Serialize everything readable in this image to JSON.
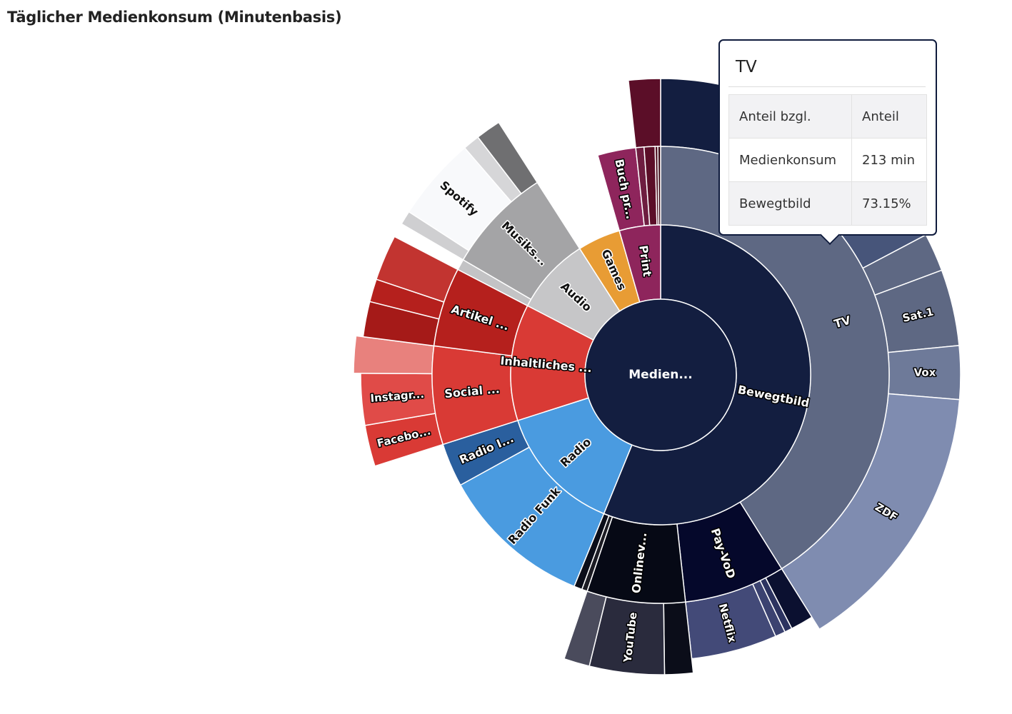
{
  "title": "Täglicher Medienkonsum (Minutenbasis)",
  "tooltip": {
    "title": "TV",
    "rows": [
      [
        "Anteil bzgl.",
        "Anteil"
      ],
      [
        "Medienkonsum",
        "213 min"
      ],
      [
        "Bewegtbild",
        "73.15%"
      ]
    ]
  },
  "chart_data": {
    "type": "sunburst",
    "root": "Medien...",
    "unit": "min",
    "rings": [
      [
        {
          "id": "bw",
          "label": "Bewegtbild",
          "value": 291,
          "color": "#131e40",
          "text_color": "#ffffff",
          "text_stroke": true
        },
        {
          "id": "radio",
          "label": "Radio",
          "value": 72,
          "color": "#4a9be0",
          "text_color": "#111111",
          "text_stroke": false
        },
        {
          "id": "ih",
          "label": "Inhaltliches ...",
          "value": 65,
          "color": "#d93a35",
          "text_color": "#ffffff",
          "text_stroke": true
        },
        {
          "id": "audio",
          "label": "Audio",
          "value": 43,
          "color": "#c6c6c8",
          "text_color": "#111111",
          "text_stroke": false
        },
        {
          "id": "games",
          "label": "Games",
          "value": 24,
          "color": "#e89c34",
          "text_color": "#111111",
          "text_stroke": false
        },
        {
          "id": "print",
          "label": "Print",
          "value": 23,
          "color": "#8e255c",
          "text_color": "#ffffff",
          "text_stroke": true
        }
      ],
      [
        {
          "parent": "bw",
          "label": "TV",
          "value": 213,
          "color": "#5e6883",
          "text_color": "#ffffff",
          "text_stroke": true
        },
        {
          "parent": "bw",
          "label": "Pay-VoD",
          "value": 37,
          "color": "#05082b",
          "text_color": "#ffffff",
          "text_stroke": true
        },
        {
          "parent": "bw",
          "label": "Onlinev...",
          "value": 36,
          "color": "#060915",
          "text_color": "#ffffff",
          "text_stroke": true
        },
        {
          "parent": "bw",
          "label": "",
          "value": 2,
          "color": "#1c1c24",
          "text_color": "#ffffff",
          "text_stroke": false
        },
        {
          "parent": "bw",
          "label": "",
          "value": 3,
          "color": "#0b0d19",
          "text_color": "#ffffff",
          "text_stroke": false
        },
        {
          "parent": "radio",
          "label": "Radio Funk",
          "value": 56,
          "color": "#4a9be0",
          "text_color": "#111111",
          "text_stroke": false
        },
        {
          "parent": "radio",
          "label": "Radio I...",
          "value": 16,
          "color": "#2a5f9e",
          "text_color": "#ffffff",
          "text_stroke": true
        },
        {
          "parent": "ih",
          "label": "Social ...",
          "value": 36,
          "color": "#d93a35",
          "text_color": "#ffffff",
          "text_stroke": true
        },
        {
          "parent": "ih",
          "label": "Artikel ...",
          "value": 29,
          "color": "#b5201d",
          "text_color": "#ffffff",
          "text_stroke": true
        },
        {
          "parent": "audio",
          "label": "",
          "value": 4,
          "color": "#c3c3c5",
          "text_color": "#111111",
          "text_stroke": false
        },
        {
          "parent": "audio",
          "label": "Musiks...",
          "value": 39,
          "color": "#a4a4a6",
          "text_color": "#111111",
          "text_stroke": false
        },
        {
          "parent": "print",
          "label": "Buch pr...",
          "value": 14,
          "color": "#8e255c",
          "text_color": "#ffffff",
          "text_stroke": true
        },
        {
          "parent": "print",
          "label": "",
          "value": 3,
          "color": "#6e1d40",
          "text_color": "#ffffff",
          "text_stroke": false
        },
        {
          "parent": "print",
          "label": "",
          "value": 4,
          "color": "#5b0e28",
          "text_color": "#ffffff",
          "text_stroke": false
        },
        {
          "parent": "print",
          "label": "",
          "value": 1,
          "color": "#4a0a1c",
          "text_color": "#ffffff",
          "text_stroke": false
        },
        {
          "parent": "print",
          "label": "",
          "value": 1,
          "color": "#3a0613",
          "text_color": "#ffffff",
          "text_stroke": false
        }
      ]
    ]
  }
}
